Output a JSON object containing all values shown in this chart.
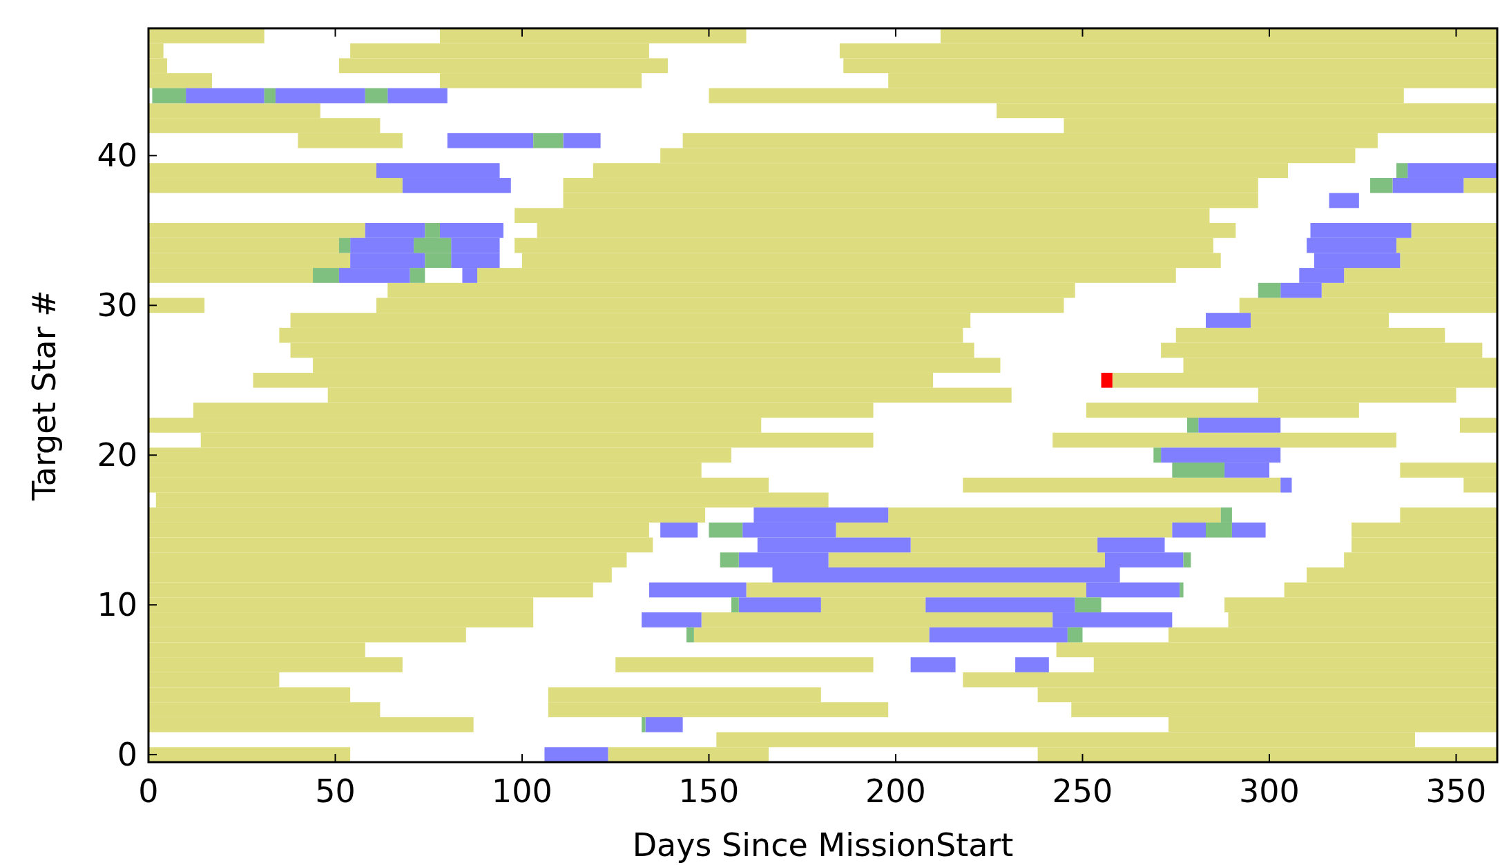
{
  "chart_data": {
    "type": "bar",
    "orientation": "horizontal",
    "xlabel": "Days Since MissionStart",
    "ylabel": "Target Star #",
    "xlim": [
      0,
      361
    ],
    "xticks": [
      0,
      50,
      100,
      150,
      200,
      250,
      300,
      350
    ],
    "categories": [
      null,
      null,
      null,
      null,
      null,
      null,
      null,
      null,
      "40",
      null,
      null,
      null,
      null,
      null,
      null,
      null,
      null,
      null,
      "30",
      null,
      null,
      null,
      null,
      null,
      null,
      null,
      null,
      null,
      "20",
      null,
      null,
      null,
      null,
      null,
      null,
      null,
      null,
      null,
      "10",
      null,
      null,
      null,
      null,
      null,
      null,
      null,
      null,
      null,
      "0"
    ],
    "series": [
      {
        "color": "#dddd80",
        "base": [
          0,
          0,
          0,
          0,
          150,
          0,
          0,
          40,
          137,
          0,
          0,
          111,
          98,
          0,
          0,
          0,
          0,
          64,
          0,
          38,
          35,
          38,
          44,
          28,
          48,
          12,
          0,
          14,
          0,
          0,
          0,
          2,
          0,
          0,
          0,
          0,
          0,
          0,
          0,
          0,
          0,
          0,
          0,
          0,
          0,
          0,
          0,
          152,
          0
        ],
        "values": [
          31,
          4,
          5,
          17,
          186,
          46,
          62,
          28,
          186,
          61,
          68,
          186,
          186,
          58,
          51,
          54,
          44,
          184,
          15,
          182,
          183,
          183,
          184,
          182,
          183,
          182,
          164,
          180,
          156,
          148,
          166,
          180,
          149,
          134,
          135,
          128,
          124,
          119,
          103,
          103,
          85,
          58,
          68,
          35,
          54,
          62,
          87,
          187,
          54
        ]
      },
      {
        "color": "#dddd80",
        "base": [
          78,
          54,
          51,
          78,
          null,
          227,
          245,
          143,
          null,
          119,
          111,
          null,
          null,
          104,
          98,
          100,
          88,
          314,
          61,
          295,
          275,
          271,
          277,
          258,
          297,
          251,
          351,
          242,
          null,
          335,
          218,
          null,
          198,
          184,
          204,
          182,
          310,
          160,
          180,
          148,
          146,
          243,
          125,
          218,
          107,
          107,
          273,
          null,
          123
        ],
        "values": [
          82,
          80,
          88,
          54,
          null,
          134,
          116,
          186,
          null,
          186,
          186,
          null,
          null,
          187,
          187,
          187,
          187,
          47,
          184,
          37,
          72,
          86,
          84,
          103,
          53,
          73,
          10,
          92,
          null,
          26,
          85,
          null,
          89,
          90,
          50,
          74,
          51,
          91,
          28,
          94,
          63,
          118,
          69,
          143,
          73,
          91,
          88,
          null,
          43
        ]
      },
      {
        "color": "#dddd80",
        "base": [
          212,
          185,
          186,
          198,
          null,
          null,
          null,
          null,
          null,
          null,
          352,
          null,
          null,
          338,
          334,
          335,
          320,
          null,
          292,
          null,
          null,
          null,
          null,
          null,
          null,
          null,
          null,
          null,
          null,
          null,
          352,
          null,
          335,
          322,
          322,
          320,
          null,
          304,
          288,
          289,
          273,
          null,
          253,
          null,
          238,
          247,
          null,
          null,
          238
        ],
        "values": [
          149,
          176,
          175,
          163,
          null,
          null,
          null,
          null,
          null,
          null,
          9,
          null,
          null,
          23,
          27,
          26,
          41,
          null,
          69,
          null,
          null,
          null,
          null,
          null,
          null,
          null,
          null,
          null,
          null,
          null,
          9,
          null,
          26,
          39,
          39,
          41,
          null,
          57,
          73,
          72,
          88,
          null,
          108,
          null,
          123,
          114,
          null,
          null,
          123
        ]
      },
      {
        "color": "#7f7fff",
        "base": [
          null,
          null,
          null,
          null,
          10,
          null,
          null,
          80,
          null,
          61,
          68,
          316,
          null,
          58,
          54,
          54,
          51,
          303,
          null,
          283,
          null,
          null,
          null,
          null,
          null,
          null,
          281,
          null,
          271,
          288,
          303,
          null,
          162,
          137,
          163,
          158,
          167,
          134,
          158,
          132,
          209,
          null,
          204,
          null,
          null,
          null,
          133,
          null,
          106
        ],
        "values": [
          null,
          null,
          null,
          null,
          21,
          null,
          null,
          23,
          null,
          33,
          29,
          8,
          null,
          16,
          17,
          20,
          19,
          11,
          null,
          12,
          null,
          null,
          null,
          null,
          null,
          null,
          22,
          null,
          32,
          12,
          3,
          null,
          36,
          10,
          41,
          24,
          93,
          26,
          22,
          16,
          37,
          null,
          12,
          null,
          null,
          null,
          10,
          null,
          17
        ]
      },
      {
        "color": "#7f7fff",
        "base": [
          null,
          null,
          null,
          null,
          34,
          null,
          null,
          111,
          null,
          337,
          333,
          null,
          null,
          78,
          81,
          81,
          84,
          null,
          null,
          null,
          null,
          null,
          null,
          null,
          null,
          null,
          null,
          null,
          null,
          null,
          null,
          null,
          null,
          159,
          254,
          256,
          null,
          251,
          208,
          242,
          null,
          null,
          232,
          null,
          null,
          null,
          null,
          null,
          null
        ],
        "values": [
          null,
          null,
          null,
          null,
          24,
          null,
          null,
          10,
          null,
          24,
          19,
          null,
          null,
          17,
          13,
          13,
          4,
          null,
          null,
          null,
          null,
          null,
          null,
          null,
          null,
          null,
          null,
          null,
          null,
          null,
          null,
          null,
          null,
          25,
          18,
          21,
          null,
          25,
          40,
          32,
          null,
          null,
          9,
          null,
          null,
          null,
          null,
          null,
          null
        ]
      },
      {
        "color": "#7f7fff",
        "base": [
          null,
          null,
          null,
          null,
          64,
          null,
          null,
          null,
          null,
          null,
          null,
          null,
          null,
          311,
          310,
          312,
          308,
          null,
          null,
          null,
          null,
          null,
          null,
          null,
          null,
          null,
          null,
          null,
          null,
          null,
          null,
          null,
          null,
          274,
          null,
          null,
          null,
          null,
          null,
          null,
          null,
          null,
          null,
          null,
          null,
          null,
          null,
          null,
          null
        ],
        "values": [
          null,
          null,
          null,
          null,
          16,
          null,
          null,
          null,
          null,
          null,
          null,
          null,
          null,
          27,
          24,
          23,
          12,
          null,
          null,
          null,
          null,
          null,
          null,
          null,
          null,
          null,
          null,
          null,
          null,
          null,
          null,
          null,
          null,
          9,
          null,
          null,
          null,
          null,
          null,
          null,
          null,
          null,
          null,
          null,
          null,
          null,
          null,
          null,
          null
        ]
      },
      {
        "color": "#7f7fff",
        "base": [
          null,
          null,
          null,
          null,
          null,
          null,
          null,
          null,
          null,
          null,
          null,
          null,
          null,
          null,
          null,
          null,
          null,
          null,
          null,
          null,
          null,
          null,
          null,
          null,
          null,
          null,
          null,
          null,
          null,
          null,
          null,
          null,
          null,
          290,
          null,
          null,
          null,
          null,
          null,
          null,
          null,
          null,
          null,
          null,
          null,
          null,
          null,
          null,
          null
        ],
        "values": [
          null,
          null,
          null,
          null,
          null,
          null,
          null,
          null,
          null,
          null,
          null,
          null,
          null,
          null,
          null,
          null,
          null,
          null,
          null,
          null,
          null,
          null,
          null,
          null,
          null,
          null,
          null,
          null,
          null,
          null,
          null,
          null,
          null,
          9,
          null,
          null,
          null,
          null,
          null,
          null,
          null,
          null,
          null,
          null,
          null,
          null,
          null,
          null,
          null
        ]
      },
      {
        "color": "#7fbf7f",
        "base": [
          null,
          null,
          null,
          null,
          1,
          null,
          null,
          103,
          null,
          334,
          327,
          null,
          null,
          74,
          51,
          74,
          44,
          297,
          null,
          null,
          null,
          null,
          null,
          null,
          null,
          null,
          278,
          null,
          269,
          274,
          null,
          null,
          287,
          150,
          null,
          153,
          null,
          276,
          156,
          null,
          144,
          null,
          null,
          null,
          null,
          null,
          132,
          null,
          null
        ],
        "values": [
          null,
          null,
          null,
          null,
          9,
          null,
          null,
          8,
          null,
          3,
          6,
          null,
          null,
          4,
          3,
          7,
          7,
          6,
          null,
          null,
          null,
          null,
          null,
          null,
          null,
          null,
          3,
          null,
          2,
          14,
          null,
          null,
          3,
          9,
          null,
          5,
          null,
          1,
          2,
          null,
          2,
          null,
          null,
          null,
          null,
          null,
          1,
          null,
          null
        ]
      },
      {
        "color": "#7fbf7f",
        "base": [
          null,
          null,
          null,
          null,
          31,
          null,
          null,
          null,
          null,
          null,
          null,
          null,
          null,
          null,
          71,
          null,
          70,
          null,
          null,
          null,
          null,
          null,
          null,
          null,
          null,
          null,
          null,
          null,
          null,
          null,
          null,
          null,
          null,
          283,
          null,
          277,
          null,
          null,
          248,
          null,
          246,
          null,
          null,
          null,
          null,
          null,
          null,
          null,
          null
        ],
        "values": [
          null,
          null,
          null,
          null,
          3,
          null,
          null,
          null,
          null,
          null,
          null,
          null,
          null,
          null,
          10,
          null,
          4,
          null,
          null,
          null,
          null,
          null,
          null,
          null,
          null,
          null,
          null,
          null,
          null,
          null,
          null,
          null,
          null,
          7,
          null,
          2,
          null,
          null,
          7,
          null,
          4,
          null,
          null,
          null,
          null,
          null,
          null,
          null,
          null
        ]
      },
      {
        "color": "#7fbf7f",
        "base": [
          null,
          null,
          null,
          null,
          58,
          null,
          null,
          null,
          null,
          null,
          null,
          null,
          null,
          null,
          null,
          null,
          null,
          null,
          null,
          null,
          null,
          null,
          null,
          null,
          null,
          null,
          null,
          null,
          null,
          null,
          null,
          null,
          null,
          null,
          null,
          null,
          null,
          null,
          null,
          null,
          null,
          null,
          null,
          null,
          null,
          null,
          null,
          null,
          null
        ],
        "values": [
          null,
          null,
          null,
          null,
          6,
          null,
          null,
          null,
          null,
          null,
          null,
          null,
          null,
          null,
          null,
          null,
          null,
          null,
          null,
          null,
          null,
          null,
          null,
          null,
          null,
          null,
          null,
          null,
          null,
          null,
          null,
          null,
          null,
          null,
          null,
          null,
          null,
          null,
          null,
          null,
          null,
          null,
          null,
          null,
          null,
          null,
          null,
          null,
          null
        ]
      },
      {
        "color": "#ff0000",
        "base": [
          null,
          null,
          null,
          null,
          null,
          null,
          null,
          null,
          null,
          null,
          null,
          null,
          null,
          null,
          null,
          null,
          null,
          null,
          null,
          null,
          null,
          null,
          null,
          255,
          null,
          null,
          null,
          null,
          null,
          null,
          null,
          null,
          null,
          null,
          null,
          null,
          null,
          null,
          null,
          null,
          null,
          null,
          null,
          null,
          null,
          null,
          null,
          null,
          null
        ],
        "values": [
          null,
          null,
          null,
          null,
          null,
          null,
          null,
          null,
          null,
          null,
          null,
          null,
          null,
          null,
          null,
          null,
          null,
          null,
          null,
          null,
          null,
          null,
          null,
          3,
          null,
          null,
          null,
          null,
          null,
          null,
          null,
          null,
          null,
          null,
          null,
          null,
          null,
          null,
          null,
          null,
          null,
          null,
          null,
          null,
          null,
          null,
          null,
          null,
          null
        ]
      }
    ]
  }
}
